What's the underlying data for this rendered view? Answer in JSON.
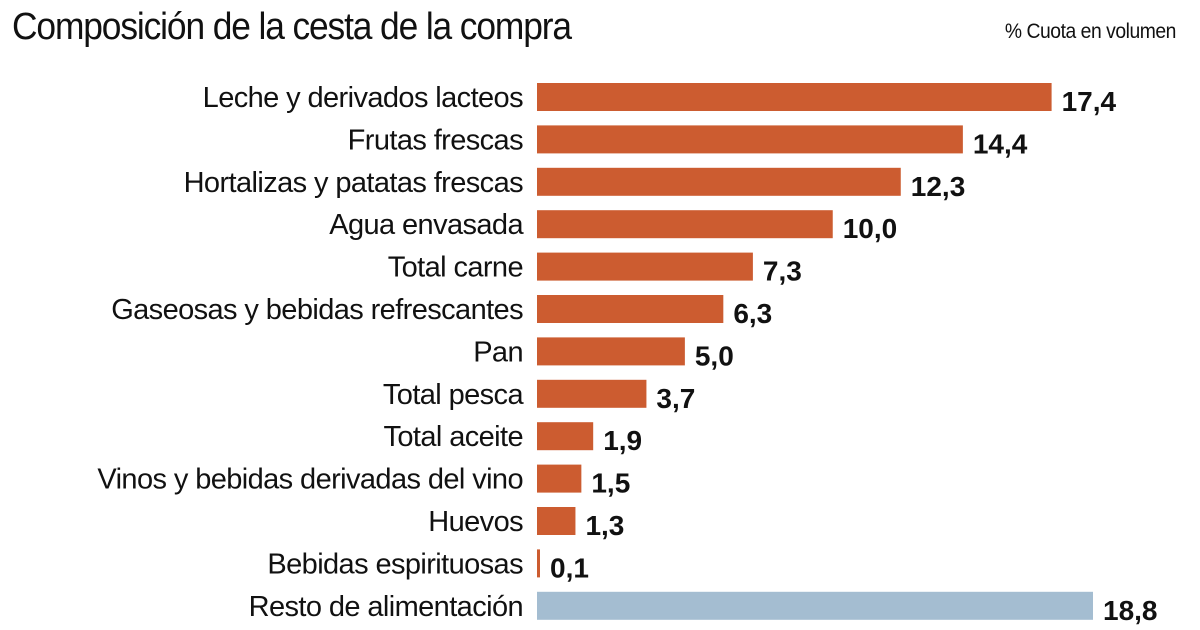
{
  "header": {
    "title": "Composición de la cesta de la compra",
    "unit_label": "% Cuota en volumen"
  },
  "colors": {
    "main_bar": "#cc5c30",
    "rest_bar": "#a4bdd1"
  },
  "chart_data": {
    "type": "bar",
    "orientation": "horizontal",
    "title": "Composición de la cesta de la compra",
    "xlabel": "% Cuota en volumen",
    "ylabel": "",
    "xlim": [
      0,
      18.8
    ],
    "grid": false,
    "legend": "none",
    "categories": [
      "Leche y derivados lacteos",
      "Frutas frescas",
      "Hortalizas y patatas frescas",
      "Agua envasada",
      "Total carne",
      "Gaseosas y bebidas refrescantes",
      "Pan",
      "Total pesca",
      "Total aceite",
      "Vinos y bebidas derivadas del vino",
      "Huevos",
      "Bebidas espirituosas",
      "Resto de alimentación"
    ],
    "values": [
      17.4,
      14.4,
      12.3,
      10.0,
      7.3,
      6.3,
      5.0,
      3.7,
      1.9,
      1.5,
      1.3,
      0.1,
      18.8
    ],
    "value_labels": [
      "17,4",
      "14,4",
      "12,3",
      "10,0",
      "7,3",
      "6,3",
      "5,0",
      "3,7",
      "1,9",
      "1,5",
      "1,3",
      "0,1",
      "18,8"
    ],
    "highlight": [
      false,
      false,
      false,
      false,
      false,
      false,
      false,
      false,
      false,
      false,
      false,
      false,
      true
    ]
  }
}
